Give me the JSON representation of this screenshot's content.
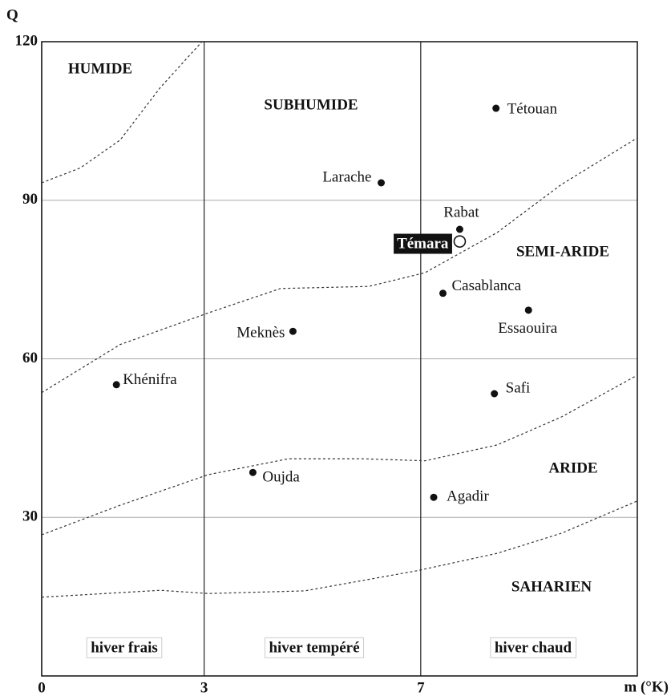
{
  "chart_data": {
    "type": "scatter",
    "xlabel": "m (°K)",
    "ylabel": "Q",
    "xlim": [
      0,
      11
    ],
    "ylim": [
      0,
      120
    ],
    "xticks": [
      0,
      3,
      7
    ],
    "yticks": [
      30,
      60,
      90,
      120
    ],
    "grid": true,
    "points": [
      {
        "label": "Tétouan",
        "x": 8.39,
        "y": 107.4,
        "style": "filled"
      },
      {
        "label": "Larache",
        "x": 6.27,
        "y": 93.3,
        "style": "filled"
      },
      {
        "label": "Rabat",
        "x": 7.72,
        "y": 84.5,
        "style": "filled"
      },
      {
        "label": "Témara",
        "x": 7.72,
        "y": 82.2,
        "style": "open"
      },
      {
        "label": "Casablanca",
        "x": 7.41,
        "y": 72.4,
        "style": "filled"
      },
      {
        "label": "Essaouira",
        "x": 8.99,
        "y": 69.2,
        "style": "filled"
      },
      {
        "label": "Meknès",
        "x": 4.64,
        "y": 65.2,
        "style": "filled"
      },
      {
        "label": "Khénifra",
        "x": 1.38,
        "y": 55.1,
        "style": "filled"
      },
      {
        "label": "Safi",
        "x": 8.36,
        "y": 53.4,
        "style": "filled"
      },
      {
        "label": "Oujda",
        "x": 3.9,
        "y": 38.5,
        "style": "filled"
      },
      {
        "label": "Agadir",
        "x": 7.24,
        "y": 33.8,
        "style": "filled"
      }
    ],
    "boundaries": [
      {
        "x": [
          0,
          0.71,
          1.45,
          2.19,
          2.96
        ],
        "y": [
          93.3,
          96.1,
          101.4,
          111.3,
          120
        ]
      },
      {
        "x": [
          0,
          1.45,
          3.08,
          4.41,
          6.04,
          7.08,
          8.41,
          9.6,
          11
        ],
        "y": [
          53.6,
          62.7,
          68.7,
          73.3,
          73.7,
          76.3,
          83.9,
          93.0,
          101.8
        ]
      },
      {
        "x": [
          0,
          1.45,
          3.08,
          4.56,
          5.9,
          7.08,
          8.41,
          9.6,
          11
        ],
        "y": [
          26.7,
          32.3,
          38.1,
          41.1,
          41.1,
          40.7,
          43.7,
          49.0,
          56.9
        ]
      },
      {
        "x": [
          0,
          2.19,
          3.08,
          4.86,
          6.93,
          8.41,
          9.6,
          11
        ],
        "y": [
          14.9,
          16.2,
          15.6,
          16.1,
          19.9,
          23.2,
          27.0,
          33.1
        ]
      }
    ],
    "zones": [
      "HUMIDE",
      "SUBHUMIDE",
      "SEMI-ARIDE",
      "ARIDE",
      "SAHARIEN"
    ],
    "seasons": [
      "hiver frais",
      "hiver tempéré",
      "hiver chaud"
    ]
  }
}
